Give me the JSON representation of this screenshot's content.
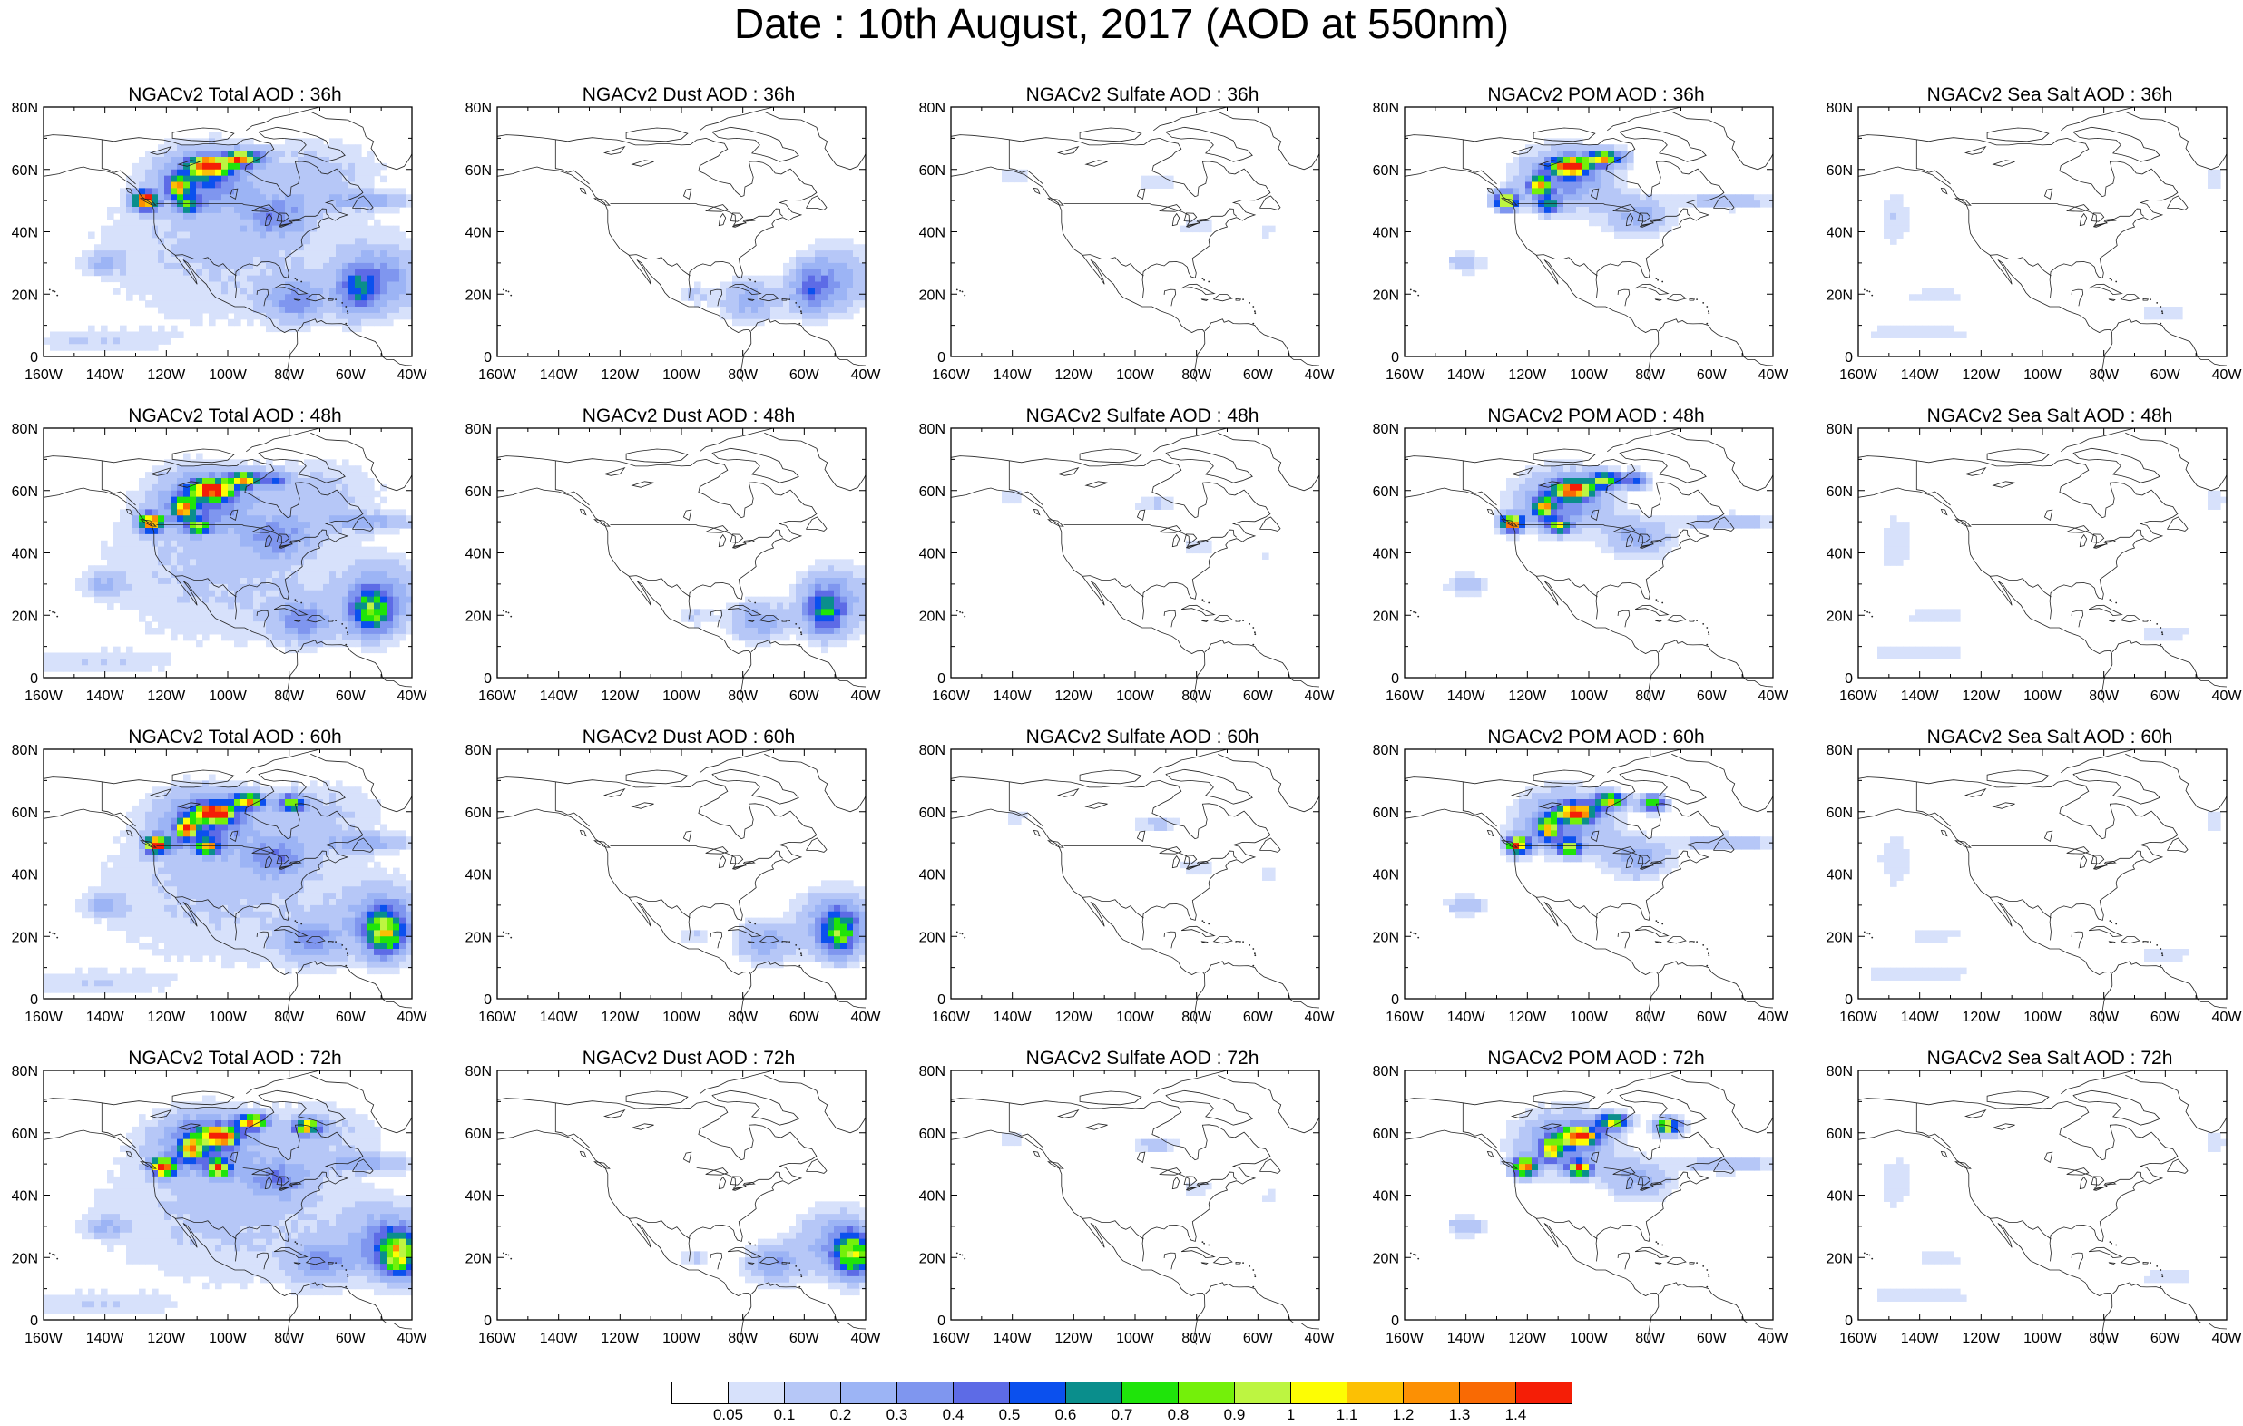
{
  "title": "Date : 10th August, 2017 (AOD at 550nm)",
  "lat_ticks": [
    "80N",
    "60N",
    "40N",
    "20N",
    "0"
  ],
  "lon_ticks": [
    "160W",
    "140W",
    "120W",
    "100W",
    "80W",
    "60W",
    "40W"
  ],
  "panels": [
    {
      "title": "NGACv2 Total AOD : 36h",
      "species": "total",
      "hour": 36
    },
    {
      "title": "NGACv2 Dust AOD : 36h",
      "species": "dust",
      "hour": 36
    },
    {
      "title": "NGACv2 Sulfate AOD : 36h",
      "species": "sulfate",
      "hour": 36
    },
    {
      "title": "NGACv2 POM AOD : 36h",
      "species": "pom",
      "hour": 36
    },
    {
      "title": "NGACv2 Sea Salt AOD : 36h",
      "species": "seasalt",
      "hour": 36
    },
    {
      "title": "NGACv2 Total AOD : 48h",
      "species": "total",
      "hour": 48
    },
    {
      "title": "NGACv2 Dust AOD : 48h",
      "species": "dust",
      "hour": 48
    },
    {
      "title": "NGACv2 Sulfate AOD : 48h",
      "species": "sulfate",
      "hour": 48
    },
    {
      "title": "NGACv2 POM AOD : 48h",
      "species": "pom",
      "hour": 48
    },
    {
      "title": "NGACv2 Sea Salt AOD : 48h",
      "species": "seasalt",
      "hour": 48
    },
    {
      "title": "NGACv2 Total AOD : 60h",
      "species": "total",
      "hour": 60
    },
    {
      "title": "NGACv2 Dust AOD : 60h",
      "species": "dust",
      "hour": 60
    },
    {
      "title": "NGACv2 Sulfate AOD : 60h",
      "species": "sulfate",
      "hour": 60
    },
    {
      "title": "NGACv2 POM AOD : 60h",
      "species": "pom",
      "hour": 60
    },
    {
      "title": "NGACv2 Sea Salt AOD : 60h",
      "species": "seasalt",
      "hour": 60
    },
    {
      "title": "NGACv2 Total AOD : 72h",
      "species": "total",
      "hour": 72
    },
    {
      "title": "NGACv2 Dust AOD : 72h",
      "species": "dust",
      "hour": 72
    },
    {
      "title": "NGACv2 Sulfate AOD : 72h",
      "species": "sulfate",
      "hour": 72
    },
    {
      "title": "NGACv2 POM AOD : 72h",
      "species": "pom",
      "hour": 72
    },
    {
      "title": "NGACv2 Sea Salt  AOD : 72h",
      "species": "seasalt",
      "hour": 72
    }
  ],
  "colorbar": {
    "labels": [
      "0.05",
      "0.1",
      "0.2",
      "0.3",
      "0.4",
      "0.5",
      "0.6",
      "0.7",
      "0.8",
      "0.9",
      "1",
      "1.1",
      "1.2",
      "1.3",
      "1.4"
    ],
    "colors": [
      "#ffffff",
      "#d7e1fb",
      "#b6c7f7",
      "#9cb4f5",
      "#7f96ef",
      "#5d6be6",
      "#0b50ee",
      "#0a8e8c",
      "#1fe40a",
      "#74f00a",
      "#bdf541",
      "#fdfd04",
      "#fcc004",
      "#fc9004",
      "#f96a04",
      "#f51e06"
    ]
  }
}
